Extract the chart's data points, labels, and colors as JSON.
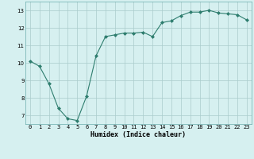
{
  "x": [
    0,
    1,
    2,
    3,
    4,
    5,
    6,
    7,
    8,
    9,
    10,
    11,
    12,
    13,
    14,
    15,
    16,
    17,
    18,
    19,
    20,
    21,
    22,
    23
  ],
  "y": [
    10.1,
    9.8,
    8.8,
    7.4,
    6.8,
    6.7,
    8.1,
    10.4,
    11.5,
    11.6,
    11.7,
    11.7,
    11.75,
    11.5,
    12.3,
    12.4,
    12.7,
    12.9,
    12.9,
    13.0,
    12.85,
    12.8,
    12.75,
    12.45
  ],
  "line_color": "#2e7d6e",
  "marker": "D",
  "marker_size": 2.0,
  "bg_color": "#d6f0f0",
  "grid_color": "#aacccc",
  "xlabel": "Humidex (Indice chaleur)",
  "ylim": [
    6.5,
    13.5
  ],
  "xlim": [
    -0.5,
    23.5
  ],
  "yticks": [
    7,
    8,
    9,
    10,
    11,
    12,
    13
  ],
  "xticks": [
    0,
    1,
    2,
    3,
    4,
    5,
    6,
    7,
    8,
    9,
    10,
    11,
    12,
    13,
    14,
    15,
    16,
    17,
    18,
    19,
    20,
    21,
    22,
    23
  ],
  "tick_fontsize": 5.0,
  "xlabel_fontsize": 6.0
}
